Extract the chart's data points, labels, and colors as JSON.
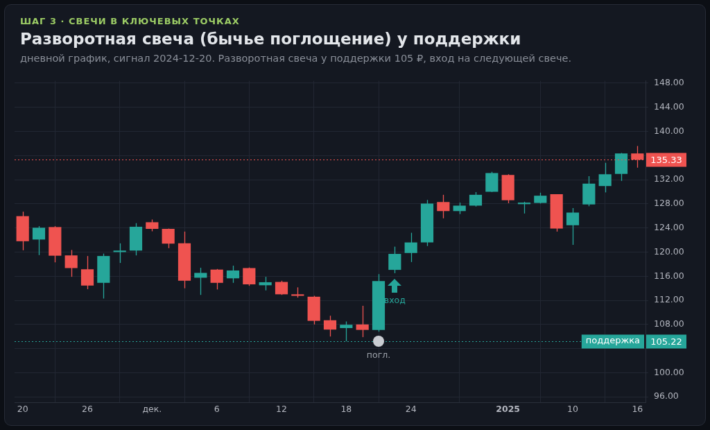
{
  "chart_data": {
    "type": "candlestick",
    "title": "Разворотная свеча (бычье поглощение) у поддержки",
    "subtitle": "дневной график, сигнал 2024-12-20. Разворотная свеча у поддержки 105 ₽, вход на следующей свече.",
    "annotations": [
      "ШАГ 3 · СВЕЧИ В КЛЮЧЕВЫХ ТОЧКАХ",
      "погл.",
      "вход",
      "105.22"
    ],
    "categories": [
      "20",
      null,
      null,
      null,
      "26",
      null,
      null,
      null,
      "дек.",
      null,
      null,
      null,
      "6",
      null,
      null,
      null,
      "12",
      null,
      null,
      null,
      "18",
      null,
      null,
      null,
      "24",
      null,
      null,
      null,
      null,
      null,
      "2025",
      null,
      null,
      null,
      "10",
      null,
      null,
      null,
      "16"
    ],
    "ohlc": [
      [
        125.96,
        126.7,
        120.3,
        121.8
      ],
      [
        122.08,
        124.3,
        119.5,
        124.04
      ],
      [
        124.15,
        124.3,
        118.3,
        119.4
      ],
      [
        119.45,
        120.35,
        115.9,
        117.35
      ],
      [
        117.15,
        119.35,
        113.85,
        114.45
      ],
      [
        114.9,
        119.75,
        112.3,
        119.35
      ],
      [
        120.0,
        121.45,
        118.2,
        120.25
      ],
      [
        120.25,
        124.8,
        119.45,
        124.2
      ],
      [
        124.95,
        125.4,
        123.45,
        123.85
      ],
      [
        123.85,
        123.9,
        120.65,
        121.4
      ],
      [
        121.45,
        123.4,
        114.0,
        115.25
      ],
      [
        115.75,
        117.4,
        112.9,
        116.55
      ],
      [
        117.1,
        117.2,
        113.8,
        114.9
      ],
      [
        115.65,
        117.75,
        114.9,
        116.95
      ],
      [
        117.35,
        117.45,
        114.4,
        114.65
      ],
      [
        114.5,
        115.9,
        113.65,
        115.0
      ],
      [
        115.05,
        115.25,
        112.9,
        113.0
      ],
      [
        113.0,
        114.15,
        112.45,
        112.75
      ],
      [
        112.6,
        112.75,
        108.0,
        108.6
      ],
      [
        108.7,
        109.45,
        106.0,
        107.15
      ],
      [
        107.4,
        108.5,
        105.2,
        107.95
      ],
      [
        108.0,
        111.1,
        105.9,
        107.1
      ],
      [
        107.1,
        116.35,
        106.8,
        115.2
      ],
      [
        117.05,
        120.9,
        116.5,
        119.7
      ],
      [
        119.85,
        123.2,
        118.35,
        121.6
      ],
      [
        121.6,
        128.65,
        121.0,
        128.05
      ],
      [
        128.3,
        129.5,
        125.6,
        126.8
      ],
      [
        126.8,
        128.2,
        126.3,
        127.7
      ],
      [
        127.7,
        129.95,
        127.55,
        129.5
      ],
      [
        130.0,
        133.3,
        129.95,
        133.1
      ],
      [
        132.8,
        132.9,
        128.1,
        128.6
      ],
      [
        127.95,
        128.35,
        126.4,
        128.2
      ],
      [
        128.15,
        129.85,
        128.05,
        129.35
      ],
      [
        129.6,
        129.6,
        123.4,
        123.9
      ],
      [
        124.45,
        127.3,
        121.2,
        126.55
      ],
      [
        127.9,
        132.6,
        127.6,
        131.35
      ],
      [
        130.95,
        134.8,
        129.9,
        132.9
      ],
      [
        132.95,
        136.45,
        131.8,
        136.35
      ],
      [
        136.35,
        137.6,
        134.0,
        135.33
      ]
    ],
    "ylim": [
      95.1,
      148.4
    ],
    "yticks": [
      {
        "value": 96,
        "label": "96.00"
      },
      {
        "value": 100,
        "label": "100.00"
      },
      {
        "value": 104,
        "label": null
      },
      {
        "value": 108,
        "label": "108.00"
      },
      {
        "value": 112,
        "label": "112.00"
      },
      {
        "value": 116,
        "label": "116.00"
      },
      {
        "value": 120,
        "label": "120.00"
      },
      {
        "value": 124,
        "label": "124.00"
      },
      {
        "value": 128,
        "label": "128.00"
      },
      {
        "value": 132,
        "label": "132.00"
      },
      {
        "value": 136,
        "label": null
      },
      {
        "value": 140,
        "label": "140.00"
      },
      {
        "value": 144,
        "label": "144.00"
      },
      {
        "value": 148,
        "label": "148.00"
      }
    ],
    "ref_lines": [
      {
        "axis": "y",
        "value": 135.33,
        "label": "135.33",
        "color": "#ef5350",
        "line_style": "dotted"
      },
      {
        "axis": "y",
        "value": 105.22,
        "label": "поддержка",
        "color": "#26a69a",
        "line_style": "dotted"
      }
    ],
    "grid": true,
    "legend": false
  }
}
